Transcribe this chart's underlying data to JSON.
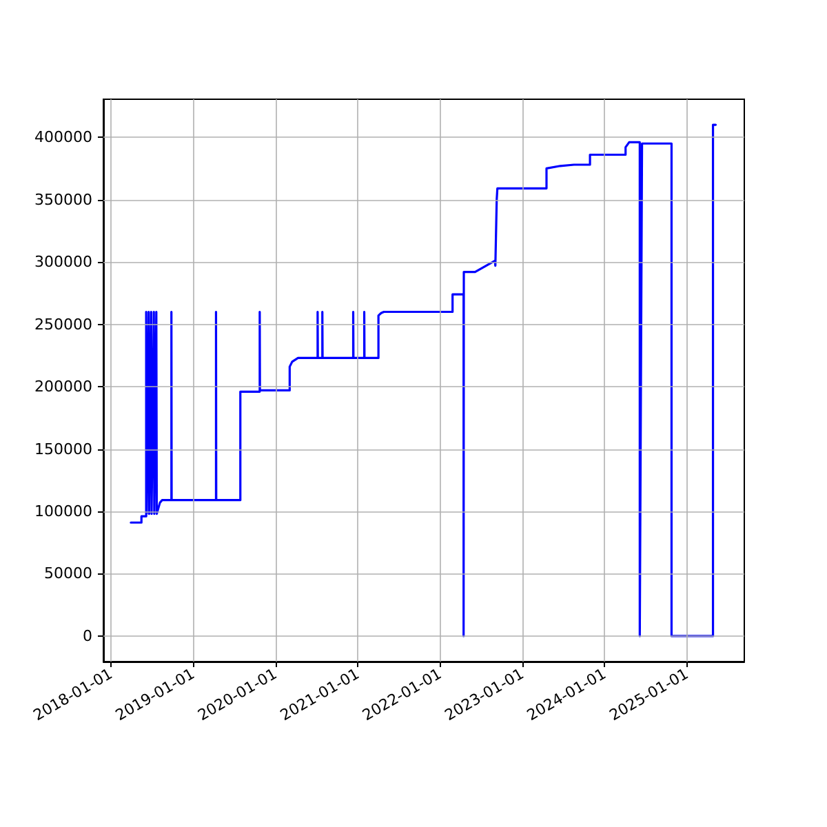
{
  "chart_data": {
    "type": "line",
    "color": "#0000ff",
    "grid": true,
    "marker": "none",
    "line_style": "solid",
    "xlim": [
      "2017-11-28",
      "2025-09-12"
    ],
    "xticks": [
      "2018-01-01",
      "2019-01-01",
      "2020-01-01",
      "2021-01-01",
      "2022-01-01",
      "2023-01-01",
      "2024-01-01",
      "2025-01-01"
    ],
    "ylim": [
      -20500,
      430500
    ],
    "yticks": [
      0,
      50000,
      100000,
      150000,
      200000,
      250000,
      300000,
      350000,
      400000
    ],
    "x": [
      "2018-03-30",
      "2018-05-16",
      "2018-05-16",
      "2018-06-06",
      "2018-06-06",
      "2018-06-08",
      "2018-06-17",
      "2018-06-19",
      "2018-06-28",
      "2018-06-30",
      "2018-07-10",
      "2018-07-12",
      "2018-07-21",
      "2018-07-23",
      "2018-08-06",
      "2018-08-16",
      "2018-09-26",
      "2018-09-26",
      "2018-09-27",
      "2019-04-12",
      "2019-04-12",
      "2019-04-13",
      "2019-07-29",
      "2019-07-29",
      "2019-10-23",
      "2019-10-23",
      "2019-10-24",
      "2020-03-04",
      "2020-03-04",
      "2020-03-15",
      "2020-04-10",
      "2020-07-06",
      "2020-07-06",
      "2020-07-07",
      "2020-07-27",
      "2020-07-27",
      "2020-07-28",
      "2020-12-11",
      "2020-12-11",
      "2020-12-12",
      "2021-01-29",
      "2021-01-29",
      "2021-01-30",
      "2021-04-02",
      "2021-04-02",
      "2021-04-14",
      "2021-04-26",
      "2022-02-25",
      "2022-02-25",
      "2022-04-15",
      "2022-04-15",
      "2022-04-16",
      "2022-06-05",
      "2022-09-01",
      "2022-09-03",
      "2022-09-09",
      "2022-09-12",
      "2023-04-18",
      "2023-04-18",
      "2023-06-18",
      "2023-08-18",
      "2023-10-28",
      "2023-10-28",
      "2024-04-03",
      "2024-04-03",
      "2024-04-19",
      "2024-06-05",
      "2024-06-05",
      "2024-06-15",
      "2024-10-24",
      "2024-10-24",
      "2025-04-26",
      "2025-04-26",
      "2025-05-08"
    ],
    "values": [
      91000,
      91000,
      96000,
      96000,
      260000,
      98000,
      260000,
      98000,
      260000,
      98000,
      260000,
      98000,
      260000,
      98000,
      107000,
      109000,
      109000,
      260000,
      109000,
      109000,
      260000,
      109000,
      109000,
      196000,
      196000,
      260000,
      197000,
      197000,
      216000,
      220000,
      223000,
      223000,
      260000,
      223000,
      223000,
      260000,
      223000,
      223000,
      260000,
      223000,
      223000,
      260000,
      223000,
      223000,
      257000,
      259000,
      260000,
      260000,
      274000,
      274000,
      0,
      292000,
      292000,
      301000,
      297000,
      350000,
      359000,
      359000,
      375000,
      377000,
      378000,
      378000,
      386000,
      386000,
      392000,
      396000,
      396000,
      0,
      395000,
      395000,
      0,
      0,
      410000,
      410000
    ]
  }
}
